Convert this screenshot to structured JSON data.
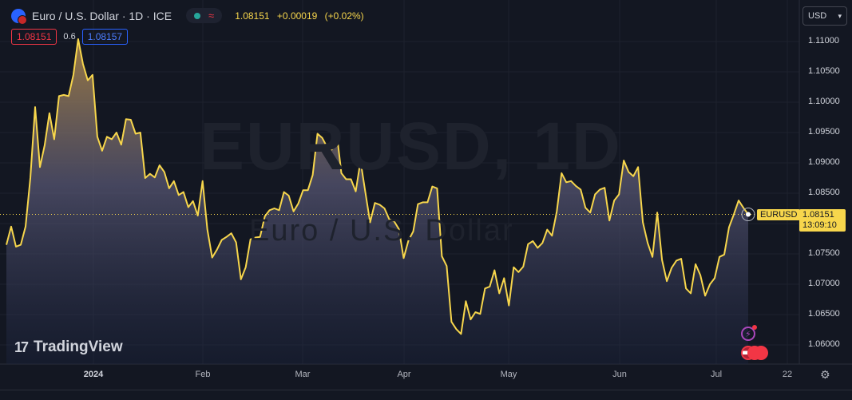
{
  "header": {
    "title": "Euro / U.S. Dollar · 1D · ICE",
    "last": "1.08151",
    "change": "+0.00019",
    "change_pct": "(+0.02%)",
    "sell": "1.08151",
    "spread": "0.6",
    "buy": "1.08157",
    "currency": "USD"
  },
  "watermark": {
    "symbol": "EURUSD, 1D",
    "description": "Euro / U.S. Dollar"
  },
  "logo": {
    "mark": "17",
    "text": "TradingView"
  },
  "last_price_label": {
    "symbol": "EURUSD",
    "price": "1.08151",
    "countdown": "13:09:10"
  },
  "colors": {
    "line": "#f7d64c",
    "background": "#131722",
    "sell": "#f23645",
    "buy": "#2962ff"
  },
  "chart_data": {
    "type": "area",
    "title": "",
    "xlabel": "",
    "ylabel": "",
    "ylim": [
      1.0565,
      1.1135
    ],
    "x_ticks": [
      "2024",
      "Feb",
      "Mar",
      "Apr",
      "May",
      "Jun",
      "Jul",
      "22"
    ],
    "y_ticks": [
      "1.11000",
      "1.10500",
      "1.10000",
      "1.09500",
      "1.09000",
      "1.08500",
      "1.08000",
      "1.07500",
      "1.07000",
      "1.06500",
      "1.06000"
    ],
    "grid": true,
    "last_value": 1.08151,
    "series": [
      {
        "values": [
          1.0765,
          1.0795,
          1.0762,
          1.0765,
          1.0795,
          1.0875,
          1.0992,
          1.0893,
          1.0929,
          1.0982,
          1.0939,
          1.101,
          1.1012,
          1.101,
          1.1045,
          1.1104,
          1.1063,
          1.1036,
          1.1045,
          1.0943,
          1.092,
          1.0943,
          1.0939,
          1.095,
          1.093,
          1.0972,
          1.0971,
          1.0948,
          1.095,
          1.0875,
          1.0882,
          1.0876,
          1.0896,
          1.0885,
          1.0858,
          1.087,
          1.0847,
          1.0852,
          1.0827,
          1.0837,
          1.0813,
          1.087,
          1.079,
          1.0744,
          1.0757,
          1.0773,
          1.0778,
          1.0784,
          1.0769,
          1.0708,
          1.0728,
          1.0774,
          1.0777,
          1.0778,
          1.0812,
          1.0822,
          1.0825,
          1.0822,
          1.0852,
          1.0846,
          1.082,
          1.0833,
          1.0855,
          1.0855,
          1.088,
          1.0948,
          1.0941,
          1.0926,
          1.0922,
          1.095,
          1.0883,
          1.0873,
          1.0873,
          1.0853,
          1.0903,
          1.0852,
          1.0802,
          1.0834,
          1.0831,
          1.0825,
          1.0807,
          1.0804,
          1.0791,
          1.0743,
          1.0772,
          1.0787,
          1.0832,
          1.0835,
          1.0835,
          1.0861,
          1.0858,
          1.0746,
          1.073,
          1.0638,
          1.0626,
          1.0618,
          1.0672,
          1.0642,
          1.0654,
          1.0651,
          1.0693,
          1.0696,
          1.0723,
          1.0685,
          1.071,
          1.0665,
          1.0728,
          1.072,
          1.0729,
          1.0766,
          1.0771,
          1.076,
          1.0768,
          1.079,
          1.078,
          1.082,
          1.0883,
          1.0868,
          1.087,
          1.0862,
          1.0856,
          1.0826,
          1.0818,
          1.0848,
          1.0856,
          1.0859,
          1.0805,
          1.0838,
          1.0848,
          1.0904,
          1.0885,
          1.0878,
          1.0893,
          1.0802,
          1.0768,
          1.0745,
          1.0818,
          1.074,
          1.0705,
          1.0727,
          1.0739,
          1.0742,
          1.0693,
          1.0685,
          1.0733,
          1.0715,
          1.0681,
          1.07,
          1.071,
          1.0745,
          1.0749,
          1.0794,
          1.0815,
          1.0838,
          1.0826,
          1.0815
        ]
      }
    ]
  }
}
